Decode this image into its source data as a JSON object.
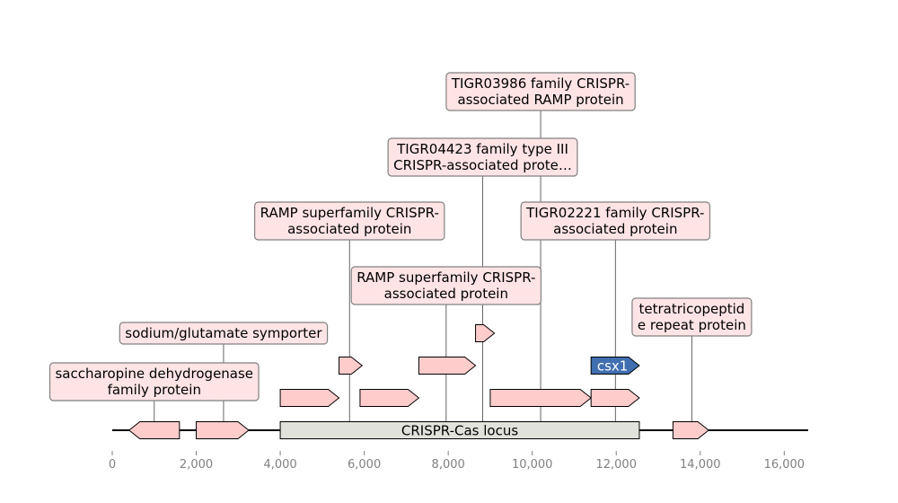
{
  "axis": {
    "min": 0,
    "max": 16570,
    "ticks": [
      0,
      2000,
      4000,
      6000,
      8000,
      10000,
      12000,
      14000,
      16000
    ],
    "tick_labels": [
      "0",
      "2,000",
      "4,000",
      "6,000",
      "8,000",
      "10,000",
      "12,000",
      "14,000",
      "16,000"
    ]
  },
  "locus": {
    "label": "CRISPR-Cas locus",
    "start": 4000,
    "end": 12550,
    "color": "#e2e2dc"
  },
  "colors": {
    "gene": "#ffcccc",
    "highlight": "#3f6fb0",
    "label_bg": "#ffe4e6",
    "label_border": "#808080"
  },
  "genes": [
    {
      "start": 400,
      "end": 1600,
      "strand": -1,
      "track": 0
    },
    {
      "start": 2000,
      "end": 3250,
      "strand": 1,
      "track": 0
    },
    {
      "start": 13350,
      "end": 14200,
      "strand": 1,
      "track": 0
    },
    {
      "start": 4000,
      "end": 5400,
      "strand": 1,
      "track": 1
    },
    {
      "start": 5900,
      "end": 7300,
      "strand": 1,
      "track": 1
    },
    {
      "start": 9000,
      "end": 11400,
      "strand": 1,
      "track": 1
    },
    {
      "start": 11400,
      "end": 12550,
      "strand": 1,
      "track": 1
    },
    {
      "start": 5400,
      "end": 5950,
      "strand": 1,
      "track": 2
    },
    {
      "start": 7300,
      "end": 8650,
      "strand": 1,
      "track": 2
    },
    {
      "start": 11400,
      "end": 12550,
      "strand": 1,
      "track": 2,
      "label": "csx1",
      "highlight": true
    },
    {
      "start": 8650,
      "end": 9100,
      "strand": 1,
      "track": 3
    }
  ],
  "annotations": [
    {
      "lines": [
        "saccharopine dehydrogenase",
        "family protein"
      ],
      "gene_x": 1000,
      "text_x": 1000,
      "level": 0
    },
    {
      "lines": [
        "sodium/glutamate symporter"
      ],
      "gene_x": 2650,
      "text_x": 2650,
      "level": 1
    },
    {
      "lines": [
        "tetratricopeptid",
        "e repeat protein"
      ],
      "gene_x": 13800,
      "text_x": 13800,
      "level": 2
    },
    {
      "lines": [
        "RAMP superfamily CRISPR-",
        "associated protein"
      ],
      "gene_x": 7950,
      "text_x": 7950,
      "level": 3
    },
    {
      "lines": [
        "TIGR02221 family CRISPR-",
        "associated protein"
      ],
      "gene_x": 11980,
      "text_x": 11980,
      "level": 4
    },
    {
      "lines": [
        "RAMP superfamily CRISPR-",
        "associated protein"
      ],
      "gene_x": 5650,
      "text_x": 5650,
      "level": 4
    },
    {
      "lines": [
        "TIGR04423 family type III",
        "CRISPR-associated prote…"
      ],
      "gene_x": 8820,
      "text_x": 8820,
      "level": 5
    },
    {
      "lines": [
        "TIGR03986 family CRISPR-",
        "associated RAMP protein"
      ],
      "gene_x": 10200,
      "text_x": 10200,
      "level": 6
    }
  ]
}
